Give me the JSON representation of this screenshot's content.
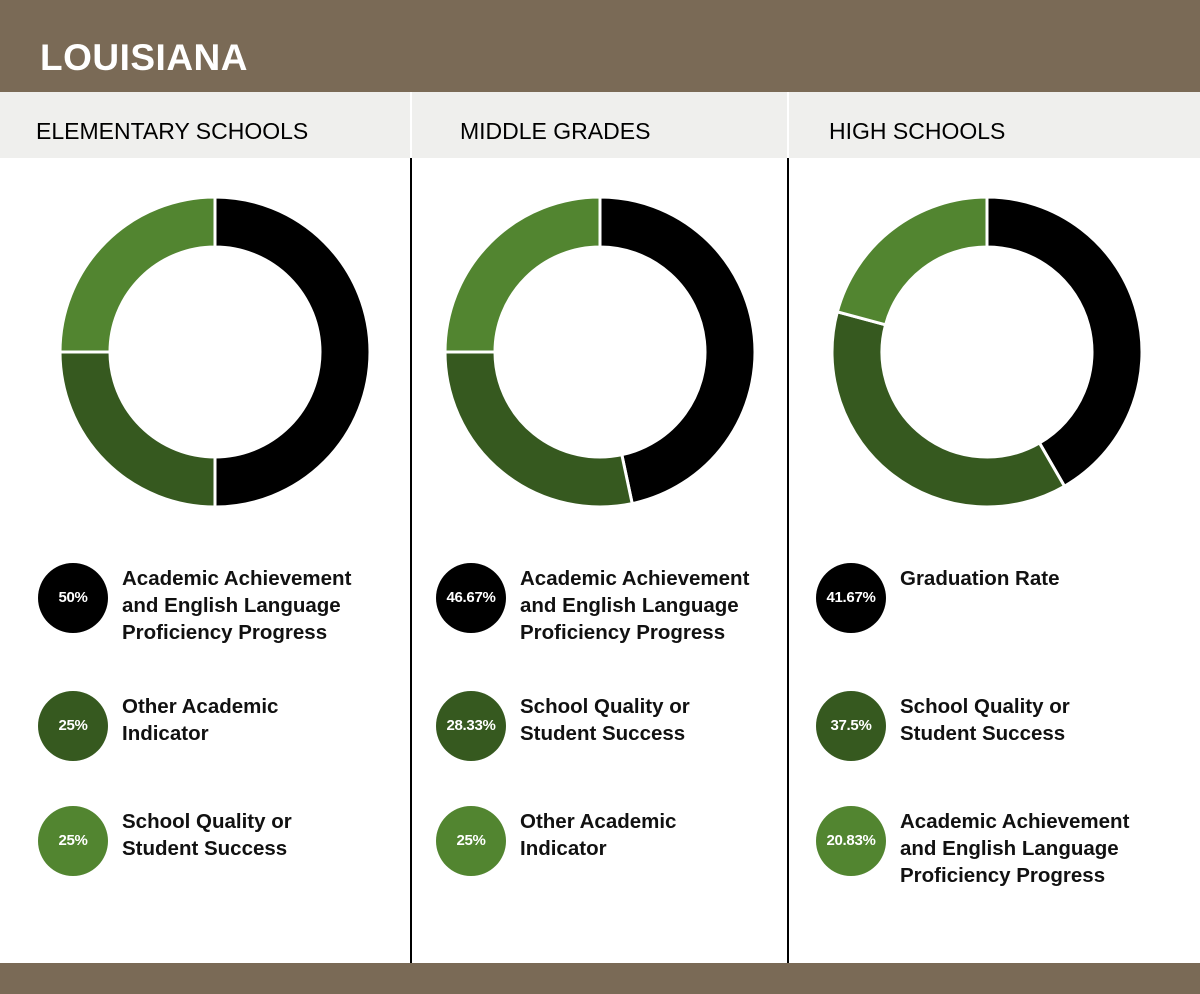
{
  "header": {
    "title": "LOUISIANA"
  },
  "colors": {
    "black": "#000000",
    "dark_green": "#36591f",
    "light_green": "#528530",
    "brown": "#7a6a56",
    "band": "#efefed"
  },
  "chart_data": [
    {
      "type": "pie",
      "title": "ELEMENTARY SCHOOLS",
      "series": [
        {
          "name": "Academic Achievement and English Language Proficiency Progress",
          "value": 50,
          "label": "50%",
          "color": "#000000"
        },
        {
          "name": "Other Academic Indicator",
          "value": 25,
          "label": "25%",
          "color": "#36591f"
        },
        {
          "name": "School Quality or Student Success",
          "value": 25,
          "label": "25%",
          "color": "#528530"
        }
      ]
    },
    {
      "type": "pie",
      "title": "MIDDLE GRADES",
      "series": [
        {
          "name": "Academic Achievement and English Language Proficiency Progress",
          "value": 46.67,
          "label": "46.67%",
          "color": "#000000"
        },
        {
          "name": "School Quality or Student Success",
          "value": 28.33,
          "label": "28.33%",
          "color": "#36591f"
        },
        {
          "name": "Other Academic Indicator",
          "value": 25,
          "label": "25%",
          "color": "#528530"
        }
      ]
    },
    {
      "type": "pie",
      "title": "HIGH SCHOOLS",
      "series": [
        {
          "name": "Graduation Rate",
          "value": 41.67,
          "label": "41.67%",
          "color": "#000000"
        },
        {
          "name": "School Quality or Student Success",
          "value": 37.5,
          "label": "37.5%",
          "color": "#36591f"
        },
        {
          "name": "Academic Achievement and English Language Proficiency Progress",
          "value": 20.83,
          "label": "20.83%",
          "color": "#528530"
        }
      ]
    }
  ]
}
